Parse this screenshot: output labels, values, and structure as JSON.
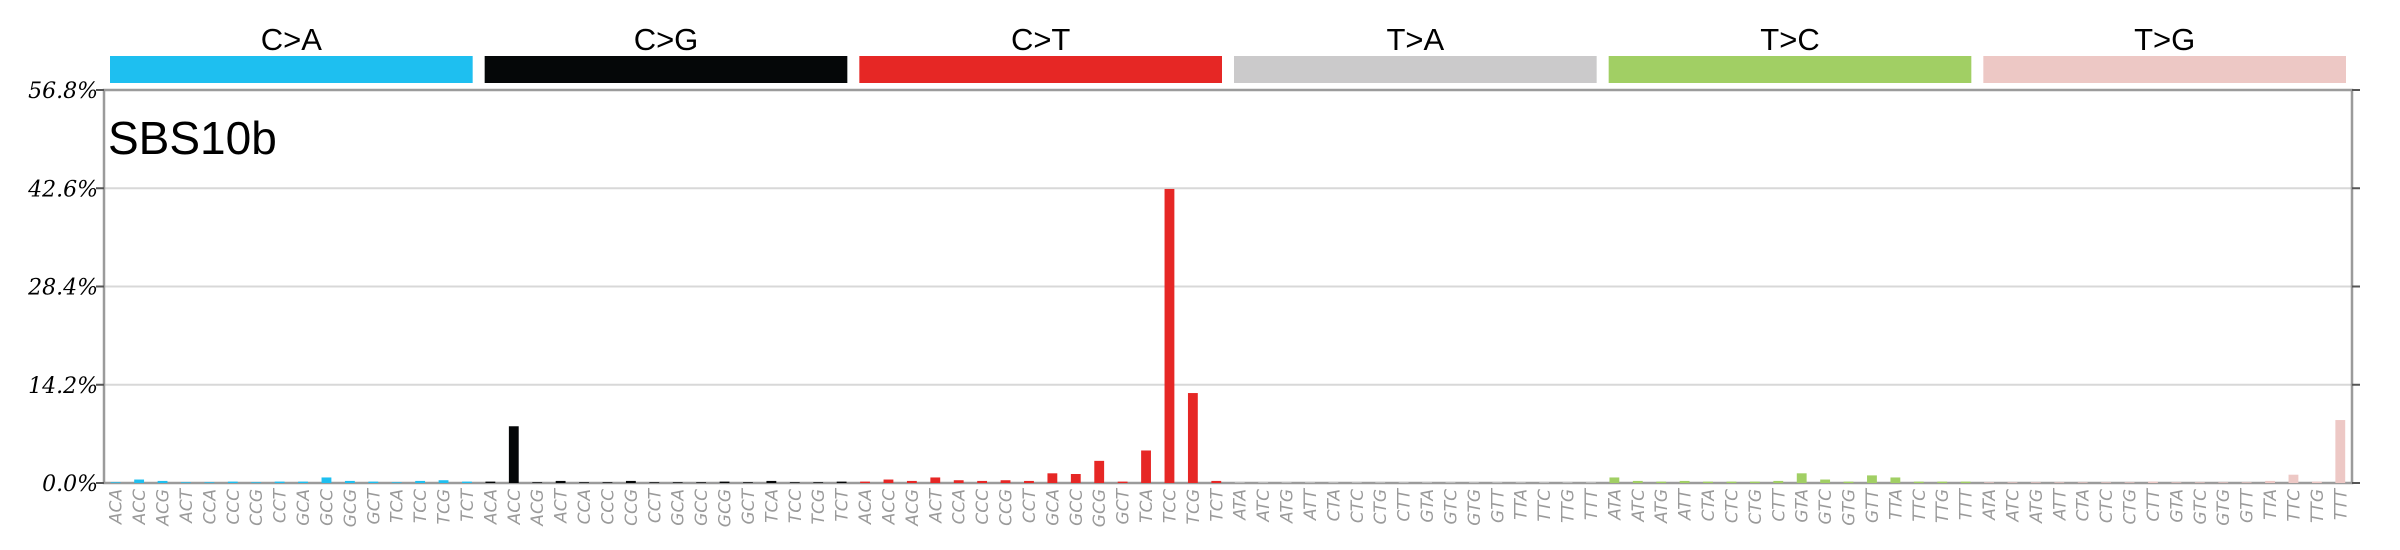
{
  "chart_data": {
    "type": "bar",
    "title": "SBS10b",
    "ylim": [
      0,
      56.8
    ],
    "y_ticks": [
      "0.0%",
      "14.2%",
      "28.4%",
      "42.6%",
      "56.8%"
    ],
    "grid": true,
    "groups": [
      {
        "label": "C>A",
        "color": "#1ebff0"
      },
      {
        "label": "C>G",
        "color": "#050708"
      },
      {
        "label": "C>T",
        "color": "#e62725"
      },
      {
        "label": "T>A",
        "color": "#cbcacb"
      },
      {
        "label": "T>C",
        "color": "#a1cf64"
      },
      {
        "label": "T>G",
        "color": "#edc8c5"
      }
    ],
    "categories": [
      "ACA",
      "ACC",
      "ACG",
      "ACT",
      "CCA",
      "CCC",
      "CCG",
      "CCT",
      "GCA",
      "GCC",
      "GCG",
      "GCT",
      "TCA",
      "TCC",
      "TCG",
      "TCT",
      "ACA",
      "ACC",
      "ACG",
      "ACT",
      "CCA",
      "CCC",
      "CCG",
      "CCT",
      "GCA",
      "GCC",
      "GCG",
      "GCT",
      "TCA",
      "TCC",
      "TCG",
      "TCT",
      "ACA",
      "ACC",
      "ACG",
      "ACT",
      "CCA",
      "CCC",
      "CCG",
      "CCT",
      "GCA",
      "GCC",
      "GCG",
      "GCT",
      "TCA",
      "TCC",
      "TCG",
      "TCT",
      "ATA",
      "ATC",
      "ATG",
      "ATT",
      "CTA",
      "CTC",
      "CTG",
      "CTT",
      "GTA",
      "GTC",
      "GTG",
      "GTT",
      "TTA",
      "TTC",
      "TTG",
      "TTT",
      "ATA",
      "ATC",
      "ATG",
      "ATT",
      "CTA",
      "CTC",
      "CTG",
      "CTT",
      "GTA",
      "GTC",
      "GTG",
      "GTT",
      "TTA",
      "TTC",
      "TTG",
      "TTT",
      "ATA",
      "ATC",
      "ATG",
      "ATT",
      "CTA",
      "CTC",
      "CTG",
      "CTT",
      "GTA",
      "GTC",
      "GTG",
      "GTT",
      "TTA",
      "TTC",
      "TTG",
      "TTT"
    ],
    "values": [
      0.1,
      0.5,
      0.3,
      0.1,
      0.1,
      0.2,
      0.1,
      0.2,
      0.2,
      0.8,
      0.3,
      0.2,
      0.1,
      0.3,
      0.4,
      0.2,
      0.2,
      8.2,
      0.1,
      0.3,
      0.1,
      0.1,
      0.3,
      0.1,
      0.1,
      0.1,
      0.2,
      0.1,
      0.3,
      0.1,
      0.1,
      0.2,
      0.2,
      0.5,
      0.3,
      0.8,
      0.4,
      0.3,
      0.4,
      0.3,
      1.4,
      1.3,
      3.2,
      0.2,
      4.7,
      42.5,
      13.0,
      0.3,
      0.1,
      0.1,
      0.1,
      0.1,
      0.1,
      0.1,
      0.1,
      0.1,
      0.1,
      0.1,
      0.1,
      0.1,
      0.1,
      0.1,
      0.1,
      0.1,
      0.8,
      0.3,
      0.2,
      0.3,
      0.2,
      0.2,
      0.2,
      0.3,
      1.4,
      0.5,
      0.2,
      1.1,
      0.8,
      0.2,
      0.2,
      0.2,
      0.1,
      0.1,
      0.1,
      0.1,
      0.1,
      0.1,
      0.1,
      0.2,
      0.1,
      0.1,
      0.1,
      0.1,
      0.3,
      1.2,
      0.2,
      9.1
    ]
  }
}
